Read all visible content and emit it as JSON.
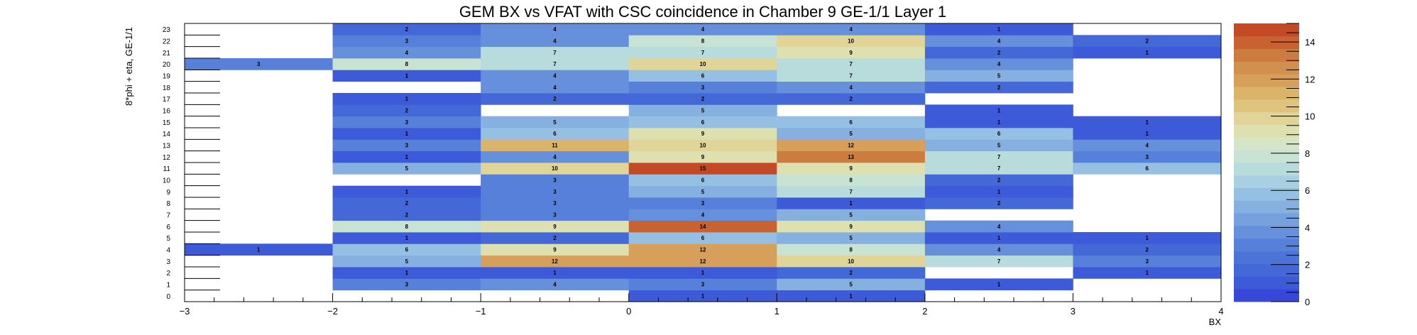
{
  "chart_data": {
    "type": "heatmap",
    "title": "GEM BX vs VFAT with CSC coincidence in Chamber 9 GE-1/1 Layer 1",
    "xlabel": "BX",
    "ylabel": "8*phi + eta, GE-1/1",
    "xlim": [
      -3,
      4
    ],
    "ylim": [
      0,
      24
    ],
    "x_bins": [
      -3,
      -2,
      -1,
      0,
      1,
      2,
      3,
      4
    ],
    "x_ticks": [
      -3,
      -2,
      -1,
      0,
      1,
      2,
      3,
      4
    ],
    "y_ticks": [
      0,
      1,
      2,
      3,
      4,
      5,
      6,
      7,
      8,
      9,
      10,
      11,
      12,
      13,
      14,
      15,
      16,
      17,
      18,
      19,
      20,
      21,
      22,
      23
    ],
    "zlim": [
      0,
      15
    ],
    "z_ticks": [
      0,
      2,
      4,
      6,
      8,
      10,
      12,
      14
    ],
    "colors": [
      "#3548d8",
      "#3d5ad8",
      "#4468d8",
      "#4c74d8",
      "#5680d9",
      "#6690db",
      "#76a0de",
      "#86b0e0",
      "#96c0e3",
      "#a8d0e2",
      "#b8dcdc",
      "#c8e2d4",
      "#d6e4c8",
      "#dee0b0",
      "#e0d498",
      "#dec47c",
      "#dab468",
      "#d6a05a",
      "#d2904e",
      "#cc7c3e",
      "#c86230",
      "#c24a26"
    ],
    "cells": [
      {
        "x": 0,
        "y": 0,
        "value": 1
      },
      {
        "x": 1,
        "y": 0,
        "value": 1
      },
      {
        "x": -2,
        "y": 1,
        "value": 3
      },
      {
        "x": -1,
        "y": 1,
        "value": 4
      },
      {
        "x": 0,
        "y": 1,
        "value": 3
      },
      {
        "x": 1,
        "y": 1,
        "value": 5
      },
      {
        "x": 2,
        "y": 1,
        "value": 1
      },
      {
        "x": -2,
        "y": 2,
        "value": 1
      },
      {
        "x": -1,
        "y": 2,
        "value": 1
      },
      {
        "x": 0,
        "y": 2,
        "value": 1
      },
      {
        "x": 1,
        "y": 2,
        "value": 2
      },
      {
        "x": 3,
        "y": 2,
        "value": 1
      },
      {
        "x": -2,
        "y": 3,
        "value": 5
      },
      {
        "x": -1,
        "y": 3,
        "value": 12
      },
      {
        "x": 0,
        "y": 3,
        "value": 12
      },
      {
        "x": 1,
        "y": 3,
        "value": 10
      },
      {
        "x": 2,
        "y": 3,
        "value": 7
      },
      {
        "x": 3,
        "y": 3,
        "value": 3
      },
      {
        "x": -3,
        "y": 4,
        "value": 1
      },
      {
        "x": -2,
        "y": 4,
        "value": 6
      },
      {
        "x": -1,
        "y": 4,
        "value": 9
      },
      {
        "x": 0,
        "y": 4,
        "value": 12
      },
      {
        "x": 1,
        "y": 4,
        "value": 8
      },
      {
        "x": 2,
        "y": 4,
        "value": 4
      },
      {
        "x": 3,
        "y": 4,
        "value": 2
      },
      {
        "x": -2,
        "y": 5,
        "value": 1
      },
      {
        "x": -1,
        "y": 5,
        "value": 2
      },
      {
        "x": 0,
        "y": 5,
        "value": 6
      },
      {
        "x": 1,
        "y": 5,
        "value": 5
      },
      {
        "x": 2,
        "y": 5,
        "value": 1
      },
      {
        "x": 3,
        "y": 5,
        "value": 1
      },
      {
        "x": -2,
        "y": 6,
        "value": 8
      },
      {
        "x": -1,
        "y": 6,
        "value": 9
      },
      {
        "x": 0,
        "y": 6,
        "value": 14
      },
      {
        "x": 1,
        "y": 6,
        "value": 9
      },
      {
        "x": 2,
        "y": 6,
        "value": 4
      },
      {
        "x": -2,
        "y": 7,
        "value": 2
      },
      {
        "x": -1,
        "y": 7,
        "value": 3
      },
      {
        "x": 0,
        "y": 7,
        "value": 4
      },
      {
        "x": 1,
        "y": 7,
        "value": 5
      },
      {
        "x": -2,
        "y": 8,
        "value": 2
      },
      {
        "x": -1,
        "y": 8,
        "value": 3
      },
      {
        "x": 0,
        "y": 8,
        "value": 3
      },
      {
        "x": 1,
        "y": 8,
        "value": 1
      },
      {
        "x": 2,
        "y": 8,
        "value": 2
      },
      {
        "x": -2,
        "y": 9,
        "value": 1
      },
      {
        "x": -1,
        "y": 9,
        "value": 3
      },
      {
        "x": 0,
        "y": 9,
        "value": 5
      },
      {
        "x": 1,
        "y": 9,
        "value": 7
      },
      {
        "x": 2,
        "y": 9,
        "value": 1
      },
      {
        "x": -1,
        "y": 10,
        "value": 3
      },
      {
        "x": 0,
        "y": 10,
        "value": 6
      },
      {
        "x": 1,
        "y": 10,
        "value": 8
      },
      {
        "x": 2,
        "y": 10,
        "value": 2
      },
      {
        "x": -2,
        "y": 11,
        "value": 5
      },
      {
        "x": -1,
        "y": 11,
        "value": 10
      },
      {
        "x": 0,
        "y": 11,
        "value": 15
      },
      {
        "x": 1,
        "y": 11,
        "value": 9
      },
      {
        "x": 2,
        "y": 11,
        "value": 7
      },
      {
        "x": 3,
        "y": 11,
        "value": 6
      },
      {
        "x": -2,
        "y": 12,
        "value": 1
      },
      {
        "x": -1,
        "y": 12,
        "value": 4
      },
      {
        "x": 0,
        "y": 12,
        "value": 9
      },
      {
        "x": 1,
        "y": 12,
        "value": 13
      },
      {
        "x": 2,
        "y": 12,
        "value": 7
      },
      {
        "x": 3,
        "y": 12,
        "value": 3
      },
      {
        "x": -2,
        "y": 13,
        "value": 3
      },
      {
        "x": -1,
        "y": 13,
        "value": 11
      },
      {
        "x": 0,
        "y": 13,
        "value": 10
      },
      {
        "x": 1,
        "y": 13,
        "value": 12
      },
      {
        "x": 2,
        "y": 13,
        "value": 5
      },
      {
        "x": 3,
        "y": 13,
        "value": 4
      },
      {
        "x": -2,
        "y": 14,
        "value": 1
      },
      {
        "x": -1,
        "y": 14,
        "value": 6
      },
      {
        "x": 0,
        "y": 14,
        "value": 9
      },
      {
        "x": 1,
        "y": 14,
        "value": 5
      },
      {
        "x": 2,
        "y": 14,
        "value": 6
      },
      {
        "x": 3,
        "y": 14,
        "value": 1
      },
      {
        "x": -2,
        "y": 15,
        "value": 3
      },
      {
        "x": -1,
        "y": 15,
        "value": 5
      },
      {
        "x": 0,
        "y": 15,
        "value": 6
      },
      {
        "x": 1,
        "y": 15,
        "value": 6
      },
      {
        "x": 2,
        "y": 15,
        "value": 1
      },
      {
        "x": 3,
        "y": 15,
        "value": 1
      },
      {
        "x": -2,
        "y": 16,
        "value": 2
      },
      {
        "x": 0,
        "y": 16,
        "value": 5
      },
      {
        "x": 2,
        "y": 16,
        "value": 1
      },
      {
        "x": -2,
        "y": 17,
        "value": 1
      },
      {
        "x": -1,
        "y": 17,
        "value": 2
      },
      {
        "x": 0,
        "y": 17,
        "value": 2
      },
      {
        "x": 1,
        "y": 17,
        "value": 2
      },
      {
        "x": -1,
        "y": 18,
        "value": 4
      },
      {
        "x": 0,
        "y": 18,
        "value": 3
      },
      {
        "x": 1,
        "y": 18,
        "value": 4
      },
      {
        "x": 2,
        "y": 18,
        "value": 2
      },
      {
        "x": -2,
        "y": 19,
        "value": 1
      },
      {
        "x": -1,
        "y": 19,
        "value": 4
      },
      {
        "x": 0,
        "y": 19,
        "value": 6
      },
      {
        "x": 1,
        "y": 19,
        "value": 7
      },
      {
        "x": 2,
        "y": 19,
        "value": 5
      },
      {
        "x": -3,
        "y": 20,
        "value": 3
      },
      {
        "x": -2,
        "y": 20,
        "value": 8
      },
      {
        "x": -1,
        "y": 20,
        "value": 7
      },
      {
        "x": 0,
        "y": 20,
        "value": 10
      },
      {
        "x": 1,
        "y": 20,
        "value": 7
      },
      {
        "x": 2,
        "y": 20,
        "value": 4
      },
      {
        "x": -2,
        "y": 21,
        "value": 4
      },
      {
        "x": -1,
        "y": 21,
        "value": 7
      },
      {
        "x": 0,
        "y": 21,
        "value": 7
      },
      {
        "x": 1,
        "y": 21,
        "value": 9
      },
      {
        "x": 2,
        "y": 21,
        "value": 2
      },
      {
        "x": 3,
        "y": 21,
        "value": 1
      },
      {
        "x": -2,
        "y": 22,
        "value": 3
      },
      {
        "x": -1,
        "y": 22,
        "value": 4
      },
      {
        "x": 0,
        "y": 22,
        "value": 8
      },
      {
        "x": 1,
        "y": 22,
        "value": 10
      },
      {
        "x": 2,
        "y": 22,
        "value": 4
      },
      {
        "x": 3,
        "y": 22,
        "value": 2
      },
      {
        "x": -2,
        "y": 23,
        "value": 2
      },
      {
        "x": -1,
        "y": 23,
        "value": 4
      },
      {
        "x": 0,
        "y": 23,
        "value": 4
      },
      {
        "x": 1,
        "y": 23,
        "value": 4
      },
      {
        "x": 2,
        "y": 23,
        "value": 1
      }
    ]
  }
}
